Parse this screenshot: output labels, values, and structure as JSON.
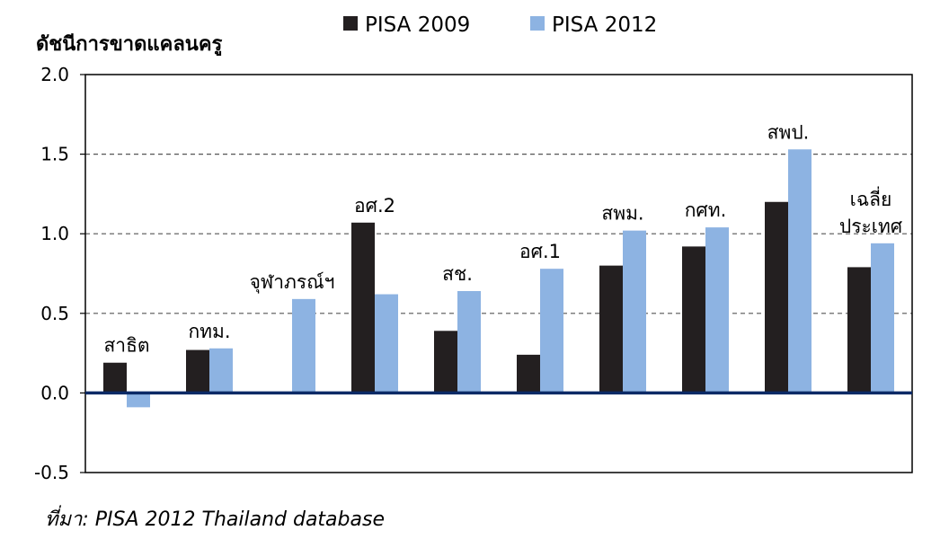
{
  "chart_data": {
    "type": "bar",
    "ylabel": "ดัชนีการขาดแคลนครู",
    "ylim": [
      -0.5,
      2.0
    ],
    "yticks": [
      "2.0",
      "1.5",
      "1.0",
      "0.5",
      "0.0",
      "-0.5"
    ],
    "ytick_values": [
      2.0,
      1.5,
      1.0,
      0.5,
      0.0,
      -0.5
    ],
    "grid": "horizontal dashed",
    "legend_position": "top",
    "categories": [
      [
        "สาธิต"
      ],
      [
        "กทม."
      ],
      [
        "จุฬาภรณ์ฯ"
      ],
      [
        "อศ.2"
      ],
      [
        "สช."
      ],
      [
        "อศ.1"
      ],
      [
        "สพม."
      ],
      [
        "กศท."
      ],
      [
        "สพป."
      ],
      [
        "เฉลี่ย",
        "ประเทศ"
      ]
    ],
    "series": [
      {
        "name": "PISA 2009",
        "color": "#231f20",
        "values": [
          0.19,
          0.27,
          null,
          1.07,
          0.39,
          0.24,
          0.8,
          0.92,
          1.2,
          0.79
        ]
      },
      {
        "name": "PISA 2012",
        "color": "#8db3e2",
        "values": [
          -0.09,
          0.28,
          0.59,
          0.62,
          0.64,
          0.78,
          1.02,
          1.04,
          1.53,
          0.94
        ]
      }
    ]
  },
  "source": "ที่มา: PISA 2012 Thailand database"
}
